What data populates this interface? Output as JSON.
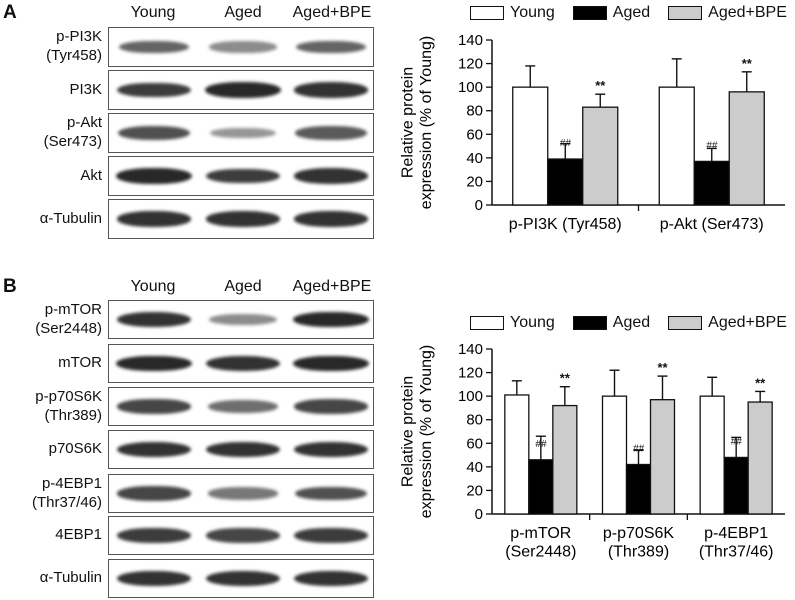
{
  "panel_a": {
    "letter": "A",
    "blot": {
      "columns": [
        "Young",
        "Aged",
        "Aged+BPE"
      ],
      "rows": [
        {
          "label_lines": [
            "p-PI3K",
            "(Tyr458)"
          ],
          "intensities": [
            0.55,
            0.35,
            0.55
          ]
        },
        {
          "label_lines": [
            "PI3K"
          ],
          "intensities": [
            0.75,
            0.85,
            0.8
          ]
        },
        {
          "label_lines": [
            "p-Akt",
            "(Ser473)"
          ],
          "intensities": [
            0.65,
            0.3,
            0.6
          ]
        },
        {
          "label_lines": [
            "Akt"
          ],
          "intensities": [
            0.85,
            0.75,
            0.8
          ]
        },
        {
          "label_lines": [
            "α-Tubulin"
          ],
          "intensities": [
            0.8,
            0.8,
            0.8
          ]
        }
      ]
    }
  },
  "panel_b": {
    "letter": "B",
    "blot": {
      "columns": [
        "Young",
        "Aged",
        "Aged+BPE"
      ],
      "rows": [
        {
          "label_lines": [
            "p-mTOR",
            "(Ser2448)"
          ],
          "intensities": [
            0.8,
            0.35,
            0.85
          ]
        },
        {
          "label_lines": [
            "mTOR"
          ],
          "intensities": [
            0.85,
            0.8,
            0.85
          ]
        },
        {
          "label_lines": [
            "p-p70S6K",
            "(Thr389)"
          ],
          "intensities": [
            0.7,
            0.5,
            0.7
          ]
        },
        {
          "label_lines": [
            "p70S6K"
          ],
          "intensities": [
            0.8,
            0.8,
            0.8
          ]
        },
        {
          "label_lines": [
            "p-4EBP1",
            "(Thr37/46)"
          ],
          "intensities": [
            0.7,
            0.45,
            0.65
          ]
        },
        {
          "label_lines": [
            "4EBP1"
          ],
          "intensities": [
            0.75,
            0.7,
            0.75
          ]
        },
        {
          "label_lines": [
            "α-Tubulin"
          ],
          "intensities": [
            0.8,
            0.8,
            0.8
          ]
        }
      ]
    }
  },
  "legend": {
    "series": [
      {
        "name": "Young",
        "color": "#ffffff"
      },
      {
        "name": "Aged",
        "color": "#000000"
      },
      {
        "name": "Aged+BPE",
        "color": "#cccccc"
      }
    ]
  },
  "chart_data": [
    {
      "type": "bar",
      "panel": "A",
      "title": "",
      "categories": [
        [
          "p-PI3K (Tyr458)"
        ],
        [
          "p-Akt (Ser473)"
        ]
      ],
      "series": [
        {
          "name": "Young",
          "values": [
            100,
            100
          ],
          "errors": [
            18,
            24
          ],
          "marks": [
            "",
            ""
          ]
        },
        {
          "name": "Aged",
          "values": [
            39,
            37
          ],
          "errors": [
            13,
            11
          ],
          "marks": [
            "##",
            "##"
          ]
        },
        {
          "name": "Aged+BPE",
          "values": [
            83,
            96
          ],
          "errors": [
            11,
            17
          ],
          "marks": [
            "**",
            "**"
          ]
        }
      ],
      "ylabel": [
        "Relative protein",
        "expression (% of Young)"
      ],
      "xlabel": "",
      "ylim": [
        0,
        140
      ],
      "yticks": [
        "0",
        "20",
        "40",
        "60",
        "80",
        "100",
        "120",
        "140"
      ],
      "legend": "top"
    },
    {
      "type": "bar",
      "panel": "B",
      "title": "",
      "categories": [
        [
          "p-mTOR",
          "(Ser2448)"
        ],
        [
          "p-p70S6K",
          "(Thr389)"
        ],
        [
          "p-4EBP1",
          "(Thr37/46)"
        ]
      ],
      "series": [
        {
          "name": "Young",
          "values": [
            101,
            100,
            100
          ],
          "errors": [
            12,
            22,
            16
          ],
          "marks": [
            "",
            "",
            ""
          ]
        },
        {
          "name": "Aged",
          "values": [
            46,
            42,
            48
          ],
          "errors": [
            20,
            12,
            17
          ],
          "marks": [
            "##",
            "##",
            "##"
          ]
        },
        {
          "name": "Aged+BPE",
          "values": [
            92,
            97,
            95
          ],
          "errors": [
            16,
            20,
            9
          ],
          "marks": [
            "**",
            "**",
            "**"
          ]
        }
      ],
      "ylabel": [
        "Relative protein",
        "expression (% of Young)"
      ],
      "xlabel": "",
      "ylim": [
        0,
        140
      ],
      "yticks": [
        "0",
        "20",
        "40",
        "60",
        "80",
        "100",
        "120",
        "140"
      ],
      "legend": "top"
    }
  ]
}
